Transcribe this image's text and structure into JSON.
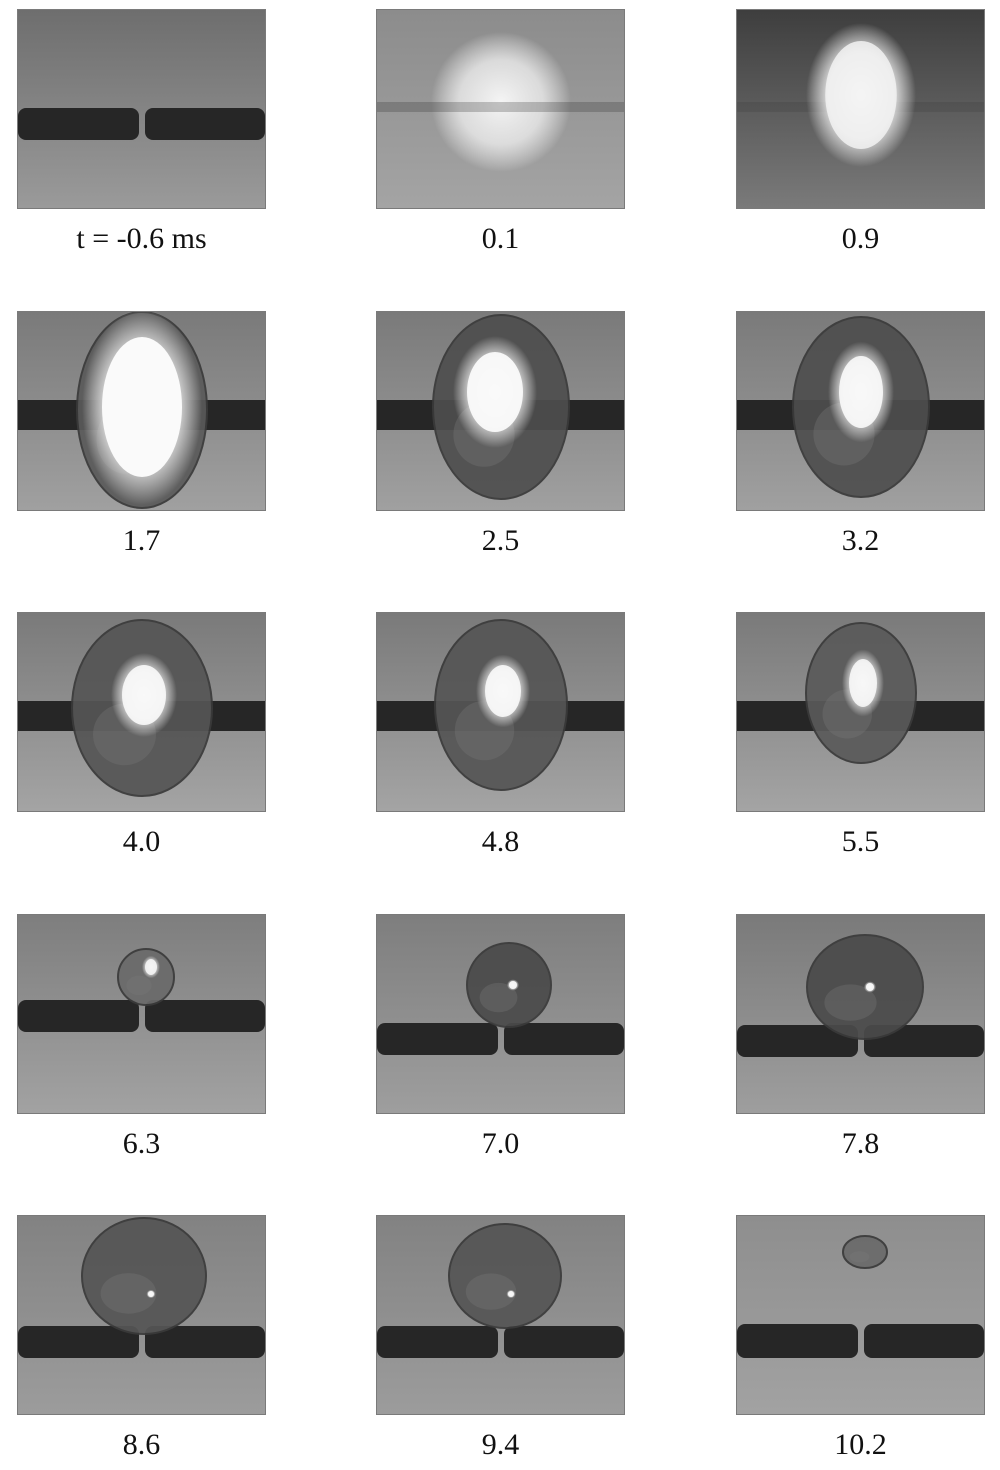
{
  "figure": {
    "frames": [
      {
        "label": "t = -0.6 ms",
        "stage": "pre"
      },
      {
        "label": "0.1",
        "stage": "flash"
      },
      {
        "label": "0.9",
        "stage": "glow"
      },
      {
        "label": "1.7",
        "stage": "bubble-bright"
      },
      {
        "label": "2.5",
        "stage": "bubble"
      },
      {
        "label": "3.2",
        "stage": "bubble"
      },
      {
        "label": "4.0",
        "stage": "bubble"
      },
      {
        "label": "4.8",
        "stage": "bubble"
      },
      {
        "label": "5.5",
        "stage": "bubble-small"
      },
      {
        "label": "6.3",
        "stage": "collapse"
      },
      {
        "label": "7.0",
        "stage": "rebound"
      },
      {
        "label": "7.8",
        "stage": "rebound"
      },
      {
        "label": "8.6",
        "stage": "rebound-large"
      },
      {
        "label": "9.4",
        "stage": "rebound-large"
      },
      {
        "label": "10.2",
        "stage": "fade"
      }
    ]
  }
}
